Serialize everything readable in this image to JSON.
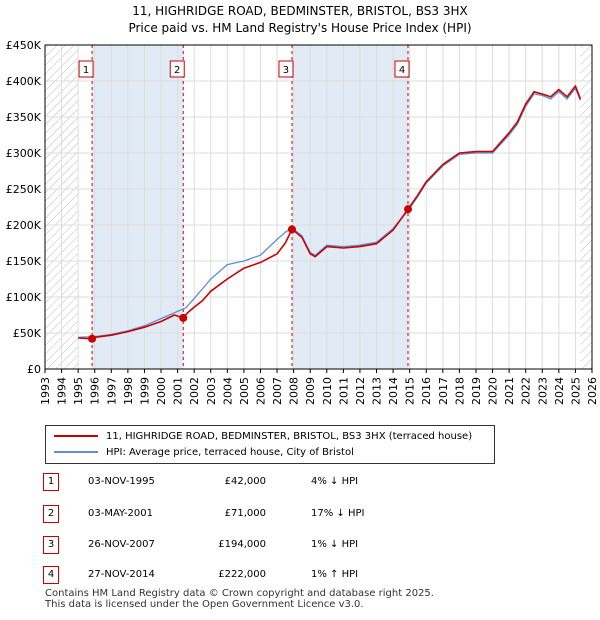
{
  "title_line1": "11, HIGHRIDGE ROAD, BEDMINSTER, BRISTOL, BS3 3HX",
  "title_line2": "Price paid vs. HM Land Registry's House Price Index (HPI)",
  "legend": {
    "property": "11, HIGHRIDGE ROAD, BEDMINSTER, BRISTOL, BS3 3HX (terraced house)",
    "hpi": "HPI: Average price, terraced house, City of Bristol"
  },
  "colors": {
    "property": "#cc0000",
    "hpi": "#5b8fd1",
    "shade": "#dce7f5",
    "grid": "#dddddd"
  },
  "events": [
    {
      "num": "1",
      "date": "03-NOV-1995",
      "price": "£42,000",
      "delta": "4% ↓ HPI"
    },
    {
      "num": "2",
      "date": "03-MAY-2001",
      "price": "£71,000",
      "delta": "17% ↓ HPI"
    },
    {
      "num": "3",
      "date": "26-NOV-2007",
      "price": "£194,000",
      "delta": "1% ↓ HPI"
    },
    {
      "num": "4",
      "date": "27-NOV-2014",
      "price": "£222,000",
      "delta": "1% ↑ HPI"
    }
  ],
  "footer_line1": "Contains HM Land Registry data © Crown copyright and database right 2025.",
  "footer_line2": "This data is licensed under the Open Government Licence v3.0.",
  "chart_data": {
    "type": "line",
    "title": "Price paid vs. HM Land Registry's House Price Index (HPI)",
    "xlim": [
      1993,
      2026
    ],
    "ylim": [
      0,
      450000
    ],
    "x_ticks": [
      1993,
      1994,
      1995,
      1996,
      1997,
      1998,
      1999,
      2000,
      2001,
      2002,
      2003,
      2004,
      2005,
      2006,
      2007,
      2008,
      2009,
      2010,
      2011,
      2012,
      2013,
      2014,
      2015,
      2016,
      2017,
      2018,
      2019,
      2020,
      2021,
      2022,
      2023,
      2024,
      2025,
      2026
    ],
    "y_ticks": [
      {
        "value": 0,
        "label": "£0"
      },
      {
        "value": 50000,
        "label": "£50K"
      },
      {
        "value": 100000,
        "label": "£100K"
      },
      {
        "value": 150000,
        "label": "£150K"
      },
      {
        "value": 200000,
        "label": "£200K"
      },
      {
        "value": 250000,
        "label": "£250K"
      },
      {
        "value": 300000,
        "label": "£300K"
      },
      {
        "value": 350000,
        "label": "£350K"
      },
      {
        "value": 400000,
        "label": "£400K"
      },
      {
        "value": 450000,
        "label": "£450K"
      }
    ],
    "hatched_ranges": [
      [
        1993,
        1995.0
      ],
      [
        2025.3,
        2026
      ]
    ],
    "shaded_ranges": [
      [
        1995.84,
        2001.34
      ],
      [
        2007.9,
        2014.9
      ]
    ],
    "series": [
      {
        "name": "HPI: Average price, terraced house, City of Bristol",
        "x": [
          1995.0,
          1996.0,
          1997.0,
          1998.0,
          1999.0,
          2000.0,
          2001.0,
          2001.5,
          2002.0,
          2003.0,
          2004.0,
          2005.0,
          2006.0,
          2007.0,
          2007.5,
          2007.9,
          2008.5,
          2009.0,
          2009.3,
          2010.0,
          2011.0,
          2012.0,
          2013.0,
          2014.0,
          2014.9,
          2015.5,
          2016.0,
          2017.0,
          2018.0,
          2019.0,
          2020.0,
          2021.0,
          2021.5,
          2022.0,
          2022.5,
          2023.0,
          2023.5,
          2024.0,
          2024.5,
          2025.0,
          2025.3
        ],
        "y": [
          44000,
          45000,
          48000,
          53000,
          60000,
          70000,
          80000,
          85000,
          98000,
          125000,
          145000,
          150000,
          158000,
          180000,
          190000,
          196000,
          185000,
          162000,
          158000,
          172000,
          170000,
          172000,
          176000,
          195000,
          220000,
          240000,
          258000,
          282000,
          298000,
          300000,
          300000,
          325000,
          340000,
          365000,
          382000,
          380000,
          375000,
          385000,
          375000,
          390000,
          373000
        ]
      },
      {
        "name": "11, HIGHRIDGE ROAD, BEDMINSTER, BRISTOL, BS3 3HX (terraced house)",
        "x": [
          1995.0,
          1995.84,
          1996.0,
          1997.0,
          1998.0,
          1999.0,
          2000.0,
          2000.8,
          2001.34,
          2001.6,
          2002.0,
          2002.5,
          2003.0,
          2004.0,
          2005.0,
          2006.0,
          2007.0,
          2007.5,
          2007.9,
          2008.5,
          2009.0,
          2009.3,
          2010.0,
          2011.0,
          2012.0,
          2013.0,
          2014.0,
          2014.9,
          2015.5,
          2016.0,
          2017.0,
          2018.0,
          2019.0,
          2020.0,
          2021.0,
          2021.5,
          2022.0,
          2022.5,
          2023.0,
          2023.5,
          2024.0,
          2024.5,
          2025.0,
          2025.3
        ],
        "y": [
          43000,
          42000,
          44000,
          47000,
          52000,
          58000,
          66000,
          75000,
          71000,
          78000,
          86000,
          95000,
          108000,
          125000,
          140000,
          148000,
          160000,
          175000,
          194000,
          183000,
          160000,
          156000,
          170000,
          168000,
          170000,
          174000,
          193000,
          222000,
          242000,
          260000,
          284000,
          300000,
          302000,
          302000,
          328000,
          343000,
          368000,
          385000,
          382000,
          378000,
          388000,
          378000,
          393000,
          375000
        ]
      }
    ],
    "markers": [
      {
        "label": "1",
        "x": 1995.84,
        "y": 42000
      },
      {
        "label": "2",
        "x": 2001.34,
        "y": 71000
      },
      {
        "label": "3",
        "x": 2007.9,
        "y": 194000
      },
      {
        "label": "4",
        "x": 2014.9,
        "y": 222000
      }
    ]
  }
}
